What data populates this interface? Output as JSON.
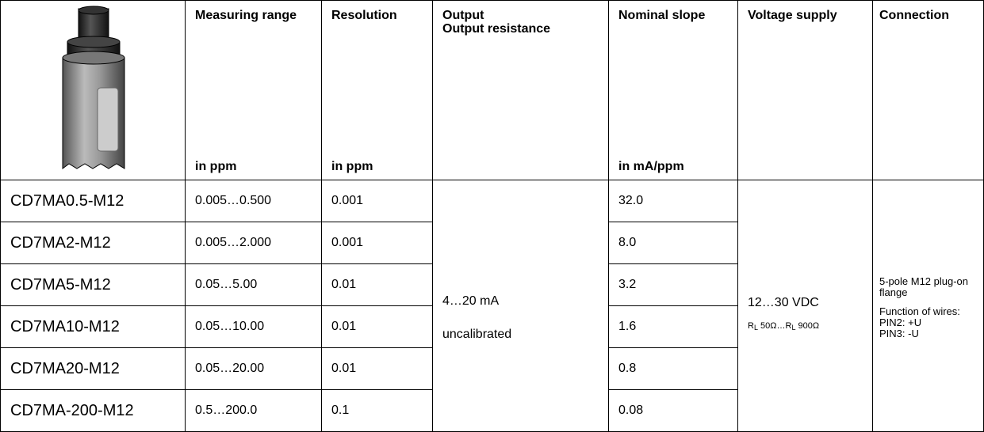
{
  "header": {
    "measuring_range": {
      "title": "Measuring range",
      "unit": "in ppm"
    },
    "resolution": {
      "title": "Resolution",
      "unit": "in ppm"
    },
    "output": {
      "lines": [
        "Output",
        "Output resistance"
      ]
    },
    "nominal_slope": {
      "title": "Nominal slope",
      "unit": "in mA/ppm"
    },
    "voltage_supply": {
      "title": "Voltage supply"
    },
    "connection": {
      "title": "Connection"
    }
  },
  "table": {
    "rows": [
      [
        "CD7MA0.5-M12",
        "0.005…0.500",
        "0.001",
        "32.0"
      ],
      [
        "CD7MA2-M12",
        "0.005…2.000",
        "0.001",
        "8.0"
      ],
      [
        "CD7MA5-M12",
        "0.05…5.00",
        "0.01",
        "3.2"
      ],
      [
        "CD7MA10-M12",
        "0.05…10.00",
        "0.01",
        "1.6"
      ],
      [
        "CD7MA20-M12",
        "0.05…20.00",
        "0.01",
        "0.8"
      ],
      [
        "CD7MA-200-M12",
        "0.5…200.0",
        "0.1",
        "0.08"
      ]
    ]
  },
  "output": {
    "signal": "4…20 mA",
    "calibration": "uncalibrated"
  },
  "voltage": {
    "supply": "12…30 VDC",
    "resistance_parts": [
      "R",
      "L",
      " 50Ω…R",
      "L",
      " 900Ω"
    ]
  },
  "connection": {
    "plug": "5-pole M12 plug-on flange",
    "function_title": "Function of wires:",
    "pins": [
      "PIN2: +U",
      "PIN3: -U"
    ]
  }
}
